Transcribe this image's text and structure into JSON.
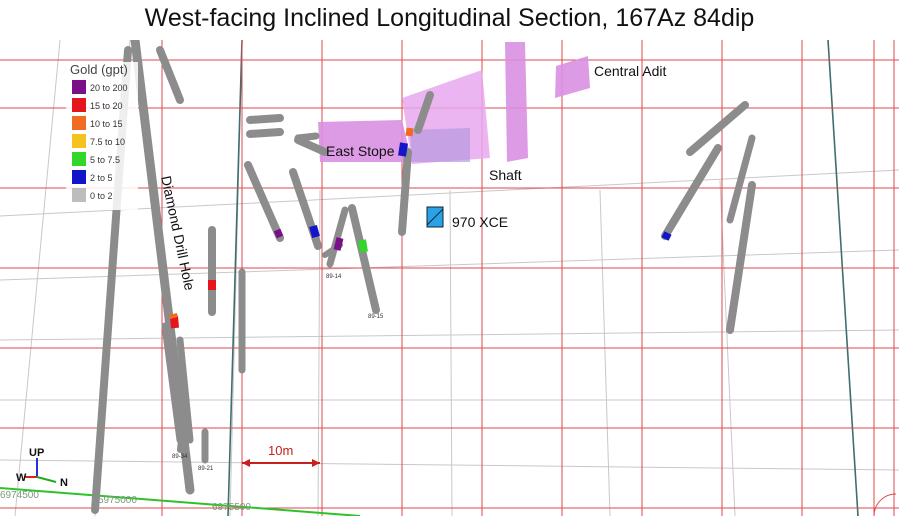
{
  "title": "West-facing Inclined Longitudinal Section, 167Az 84dip",
  "legend": {
    "title": "Gold (gpt)",
    "items": [
      {
        "label": "20 to 200",
        "color": "#7b0f87"
      },
      {
        "label": "15 to 20",
        "color": "#e4161b"
      },
      {
        "label": "10 to 15",
        "color": "#f26b22"
      },
      {
        "label": "7.5 to 10",
        "color": "#f6c21c"
      },
      {
        "label": "5 to 7.5",
        "color": "#33d62a"
      },
      {
        "label": "2 to 5",
        "color": "#1414c8"
      },
      {
        "label": "0 to 2",
        "color": "#bdbdbd"
      }
    ]
  },
  "labels": {
    "central_adit": "Central Adit",
    "east_stope": "East Stope",
    "shaft": "Shaft",
    "xce": "970 XCE",
    "drill_hole": "Diamond Drill Hole",
    "scale": "10m"
  },
  "orientation": {
    "up": "UP",
    "west": "W",
    "north": "N"
  },
  "grid_labels": {
    "e1": "6974500",
    "e2": "5975000",
    "e3": "6975500"
  },
  "hole_ids": {
    "h14": "89-14",
    "h15": "89-15",
    "h34": "89-34",
    "h21": "89-21"
  },
  "colors": {
    "grid": "#e0474d",
    "stope": "#dc8ee6",
    "drill": "#8c8c8c",
    "xce": "#2aa2e8"
  }
}
